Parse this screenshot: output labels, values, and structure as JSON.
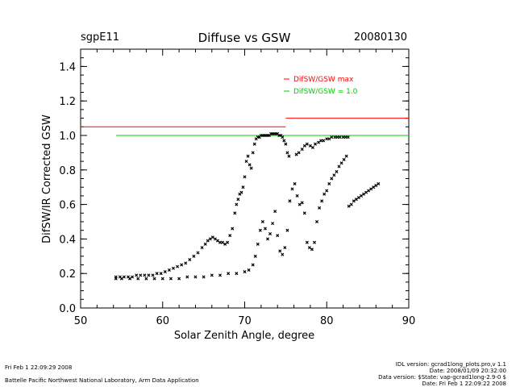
{
  "header": {
    "site": "sgpE11",
    "title": "Diffuse vs GSW",
    "date": "20080130"
  },
  "footer": {
    "left_line1": "Fri Feb  1 22:09:29 2008",
    "left_line2": "Battelle Pacific Northwest National Laboratory, Arm Data Application",
    "right_line1": "IDL version: gcrad1long_plots.pro,v 1.1",
    "right_line2": "Date: 2008/01/09 20:32:00",
    "right_line3": "Data version: $State: vap-gcrad1long-2.9-0 $",
    "right_line4": "Date: Fri Feb  1 22:09:22 2008"
  },
  "colors": {
    "max_line": "#ff0000",
    "unity_line": "#00cc00",
    "points": "#000000",
    "axes": "#000000"
  },
  "chart_data": {
    "type": "scatter",
    "title": "Diffuse vs GSW",
    "xlabel": "Solar Zenith Angle, degree",
    "ylabel": "DifSW/IR Corrected GSW",
    "xlim": [
      50,
      90
    ],
    "ylim": [
      0.0,
      1.5
    ],
    "xticks": [
      "50",
      "60",
      "70",
      "80",
      "90"
    ],
    "yticks": [
      "0.0",
      "0.2",
      "0.4",
      "0.6",
      "0.8",
      "1.0",
      "1.2",
      "1.4"
    ],
    "grid": false,
    "legend_position": "top-right",
    "legend": [
      {
        "label": "DifSW/GSW max",
        "color": "#ff0000"
      },
      {
        "label": "DifSW/GSW = 1.0",
        "color": "#00cc00"
      }
    ],
    "reference_lines": [
      {
        "name": "DifSW/GSW max",
        "color": "#ff0000",
        "segments": [
          {
            "x": [
              50,
              75
            ],
            "y": 1.05
          },
          {
            "x": [
              75,
              90
            ],
            "y": 1.1
          }
        ]
      },
      {
        "name": "DifSW/GSW = 1.0",
        "color": "#00cc00",
        "segments": [
          {
            "x": [
              54.3,
              90
            ],
            "y": 1.0
          }
        ]
      }
    ],
    "series": [
      {
        "marker": "x",
        "x": [
          54.3,
          54.8,
          55.3,
          55.8,
          56.3,
          56.8,
          57.3,
          57.8,
          58.3,
          58.8,
          59.3,
          59.8,
          60.3,
          60.8,
          61.3,
          61.8,
          62.3,
          62.8,
          63.3,
          63.8,
          64.3,
          64.8,
          65.2,
          65.5,
          65.8,
          66.1,
          66.4,
          66.7,
          67.0,
          67.3,
          67.6,
          67.9,
          68.2,
          68.5,
          68.8,
          69.0,
          69.2,
          69.4,
          69.6,
          69.8,
          70.0,
          70.2,
          70.4,
          70.6,
          70.8,
          71.0,
          71.2,
          71.4,
          71.6,
          71.8,
          72.0,
          72.2,
          72.4,
          72.6,
          72.8,
          73.0,
          73.2,
          73.4,
          73.6,
          73.8,
          74.0,
          74.2,
          74.4,
          74.6,
          74.8,
          75.0,
          75.2,
          75.4
        ],
        "y": [
          0.18,
          0.18,
          0.18,
          0.18,
          0.18,
          0.19,
          0.19,
          0.19,
          0.19,
          0.19,
          0.2,
          0.2,
          0.21,
          0.22,
          0.23,
          0.24,
          0.25,
          0.26,
          0.28,
          0.3,
          0.32,
          0.35,
          0.37,
          0.39,
          0.4,
          0.41,
          0.4,
          0.39,
          0.38,
          0.38,
          0.37,
          0.38,
          0.42,
          0.46,
          0.55,
          0.6,
          0.63,
          0.66,
          0.67,
          0.7,
          0.76,
          0.85,
          0.88,
          0.83,
          0.81,
          0.9,
          0.95,
          0.98,
          0.99,
          0.99,
          1.0,
          1.0,
          1.0,
          1.0,
          1.0,
          1.0,
          1.01,
          1.01,
          1.01,
          1.01,
          1.01,
          1.0,
          1.0,
          0.99,
          0.97,
          0.95,
          0.9,
          0.88
        ]
      },
      {
        "marker": "x",
        "x": [
          54.3,
          55.0,
          56.0,
          57.0,
          58.0,
          59.0,
          60.0,
          61.0,
          62.0,
          63.0,
          64.0,
          65.0,
          66.0,
          67.0,
          68.0,
          69.0,
          70.0,
          70.5,
          71.0,
          71.3,
          71.6,
          71.9,
          72.2,
          72.5,
          72.8,
          73.1,
          73.4,
          73.7,
          74.0,
          74.3,
          74.6,
          74.9,
          75.2,
          75.5,
          75.8,
          76.1,
          76.4,
          76.7,
          77.0,
          77.3,
          77.6,
          77.9,
          78.2,
          78.5,
          78.8,
          79.1,
          79.4,
          79.7,
          80.0,
          80.3,
          80.6,
          80.9,
          81.2,
          81.5,
          81.8,
          82.1,
          82.4,
          82.7,
          83.0,
          83.3,
          83.6,
          83.9,
          84.2,
          84.5,
          84.8,
          85.1,
          85.4,
          85.7,
          86.0,
          86.3
        ],
        "y": [
          0.17,
          0.17,
          0.17,
          0.17,
          0.17,
          0.17,
          0.17,
          0.17,
          0.17,
          0.18,
          0.18,
          0.18,
          0.19,
          0.19,
          0.2,
          0.2,
          0.21,
          0.22,
          0.25,
          0.3,
          0.37,
          0.45,
          0.5,
          0.46,
          0.4,
          0.43,
          0.49,
          0.56,
          0.42,
          0.33,
          0.31,
          0.35,
          0.45,
          0.62,
          0.69,
          0.72,
          0.65,
          0.6,
          0.61,
          0.55,
          0.38,
          0.35,
          0.34,
          0.38,
          0.5,
          0.58,
          0.62,
          0.66,
          0.68,
          0.72,
          0.75,
          0.77,
          0.79,
          0.82,
          0.84,
          0.86,
          0.88,
          0.59,
          0.6,
          0.62,
          0.63,
          0.64,
          0.65,
          0.66,
          0.67,
          0.68,
          0.69,
          0.7,
          0.71,
          0.72
        ]
      },
      {
        "marker": "x",
        "x": [
          76.3,
          76.6,
          77.0,
          77.3,
          77.6,
          78.0,
          78.3,
          78.6,
          79.0,
          79.3,
          79.6,
          80.0,
          80.3,
          80.6,
          81.0,
          81.3,
          81.6,
          82.0,
          82.3,
          82.6
        ],
        "y": [
          0.89,
          0.9,
          0.92,
          0.94,
          0.95,
          0.94,
          0.93,
          0.95,
          0.96,
          0.97,
          0.97,
          0.98,
          0.98,
          0.99,
          0.99,
          0.99,
          0.99,
          0.99,
          0.99,
          0.99
        ]
      }
    ]
  }
}
